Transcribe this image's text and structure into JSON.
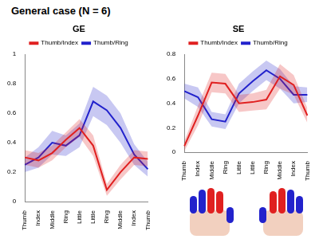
{
  "title": "General case (N = 6)",
  "chart_data": [
    {
      "type": "line",
      "title": "GE",
      "categories": [
        "Thumb",
        "Index",
        "Middle",
        "Ring",
        "Little",
        "Little",
        "Ring",
        "Middle",
        "Index",
        "Thumb"
      ],
      "series": [
        {
          "name": "Thumb/Index",
          "color": "#e02020",
          "values": [
            0.3,
            0.28,
            0.33,
            0.42,
            0.5,
            0.38,
            0.08,
            0.2,
            0.3,
            0.29
          ],
          "error": [
            0.05,
            0.05,
            0.05,
            0.05,
            0.06,
            0.07,
            0.04,
            0.05,
            0.05,
            0.05
          ]
        },
        {
          "name": "Thumb/Ring",
          "color": "#2222cc",
          "values": [
            0.25,
            0.3,
            0.4,
            0.38,
            0.45,
            0.68,
            0.62,
            0.5,
            0.32,
            0.22
          ],
          "error": [
            0.05,
            0.07,
            0.08,
            0.07,
            0.08,
            0.1,
            0.1,
            0.1,
            0.07,
            0.05
          ]
        }
      ],
      "ylim": [
        0,
        1
      ],
      "yticks": [
        0,
        0.2,
        0.4,
        0.6,
        0.8,
        1
      ],
      "legend": "top",
      "grid": false
    },
    {
      "type": "line",
      "title": "SE",
      "categories": [
        "Thumb",
        "Index",
        "Middle",
        "Ring",
        "Little",
        "Little",
        "Ring",
        "Middle",
        "Index",
        "Thumb"
      ],
      "series": [
        {
          "name": "Thumb/Index",
          "color": "#e02020",
          "values": [
            0.05,
            0.3,
            0.57,
            0.56,
            0.4,
            0.41,
            0.43,
            0.62,
            0.55,
            0.3
          ],
          "error": [
            0.04,
            0.08,
            0.08,
            0.08,
            0.07,
            0.07,
            0.08,
            0.1,
            0.08,
            0.06
          ]
        },
        {
          "name": "Thumb/Ring",
          "color": "#2222cc",
          "values": [
            0.5,
            0.45,
            0.27,
            0.25,
            0.48,
            0.58,
            0.67,
            0.6,
            0.47,
            0.47
          ],
          "error": [
            0.06,
            0.08,
            0.06,
            0.06,
            0.08,
            0.08,
            0.08,
            0.08,
            0.07,
            0.06
          ]
        }
      ],
      "ylim": [
        0,
        0.8
      ],
      "yticks": [
        0,
        0.2,
        0.4,
        0.6,
        0.8
      ],
      "legend": "top",
      "grid": false
    }
  ]
}
